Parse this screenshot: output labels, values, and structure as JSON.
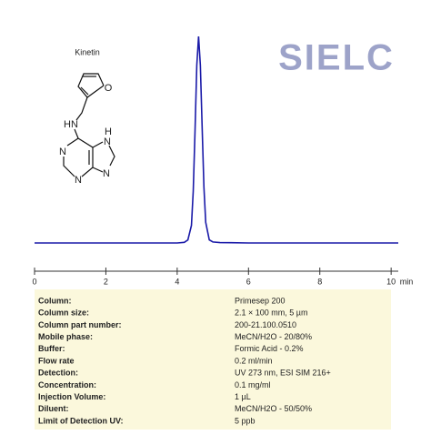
{
  "chart_data": {
    "type": "line",
    "x": [
      0,
      1,
      2,
      3,
      4,
      4.2,
      4.3,
      4.4,
      4.45,
      4.5,
      4.55,
      4.6,
      4.65,
      4.7,
      4.75,
      4.8,
      4.9,
      5.0,
      5.2,
      6,
      7,
      8,
      9,
      10,
      10.2
    ],
    "series": [
      {
        "color": "#1a1aa8",
        "values": [
          0,
          0,
          0,
          0,
          0,
          0.3,
          1.5,
          8.5,
          25,
          54,
          86,
          100,
          86,
          56,
          27,
          10,
          1.5,
          0.5,
          0.2,
          0,
          0,
          0,
          0,
          0,
          0
        ]
      }
    ],
    "xlim": [
      0,
      10.2
    ],
    "ylim": [
      0,
      100
    ],
    "xticks": [
      0,
      2,
      4,
      6,
      8,
      10
    ],
    "xlabel": "min"
  },
  "compound": {
    "name": "Kinetin",
    "atoms": [
      "O",
      "HN",
      "N",
      "N",
      "H",
      "N",
      "N"
    ]
  },
  "logo": "SIELC",
  "table": {
    "rows": [
      [
        "Column:",
        "Primesep 200"
      ],
      [
        "Column size:",
        "2.1 × 100 mm, 5 µm"
      ],
      [
        "Column part number:",
        "200-21.100.0510"
      ],
      [
        "Mobile phase:",
        "MeCN/H2O - 20/80%"
      ],
      [
        "Buffer:",
        "Formic Acid  - 0.2%"
      ],
      [
        "Flow rate",
        "0.2 ml/min"
      ],
      [
        "Detection:",
        "UV 273 nm, ESI SIM 216+"
      ],
      [
        "Concentration:",
        "0.1 mg/ml"
      ],
      [
        "Injection Volume:",
        "1 µL"
      ],
      [
        "Diluent:",
        "MeCN/H2O - 50/50%"
      ],
      [
        "Limit of Detection UV:",
        "5 ppb"
      ]
    ]
  }
}
